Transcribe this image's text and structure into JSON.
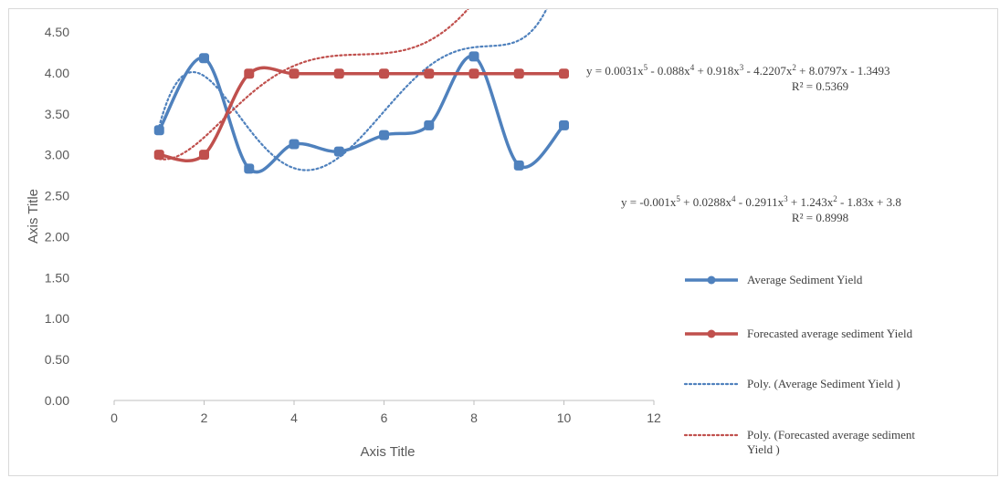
{
  "chart_data": {
    "type": "line",
    "title": "",
    "xlabel": "Axis Title",
    "ylabel": "Axis Title",
    "xlim": [
      0,
      12
    ],
    "ylim": [
      0,
      4.5
    ],
    "x_ticks": [
      "0",
      "2",
      "4",
      "6",
      "8",
      "10",
      "12"
    ],
    "y_ticks": [
      "0.00",
      "0.50",
      "1.00",
      "1.50",
      "2.00",
      "2.50",
      "3.00",
      "3.50",
      "4.00",
      "4.50"
    ],
    "x": [
      1,
      2,
      3,
      4,
      5,
      6,
      7,
      8,
      9,
      10
    ],
    "series": [
      {
        "name": "Average Sediment Yield",
        "values": [
          3.3,
          4.18,
          2.83,
          3.13,
          3.04,
          3.24,
          3.36,
          4.2,
          2.87,
          3.36
        ],
        "color": "#4f81bd",
        "style": "solid-smooth-markers"
      },
      {
        "name": "Forecasted average sediment Yield",
        "values": [
          3.0,
          3.0,
          3.99,
          3.99,
          3.99,
          3.99,
          3.99,
          3.99,
          3.99,
          3.99
        ],
        "color": "#c0504d",
        "style": "solid-smooth-markers"
      }
    ],
    "trendlines": [
      {
        "name": "Poly. (Average Sediment Yield )",
        "of_series": 0,
        "order": 5,
        "coefficients": [
          0.0031,
          -0.088,
          0.918,
          -4.2207,
          8.0797,
          -1.3493
        ],
        "equation_lines": [
          "y = 0.0031x",
          "5",
          " - 0.088x",
          "4",
          " + 0.918x",
          "3",
          " - 4.2207x",
          "2",
          " + 8.0797x - 1.3493"
        ],
        "r2": "R² = 0.5369",
        "color": "#4f81bd"
      },
      {
        "name": "Poly. (Forecasted average sediment Yield )",
        "of_series": 1,
        "order": 5,
        "coefficients": [
          -0.001,
          0.0288,
          -0.2911,
          1.243,
          -1.83,
          3.8
        ],
        "equation_lines": [
          "y = -0.001x",
          "5",
          " + 0.0288x",
          "4",
          " - 0.2911x",
          "3",
          " + 1.243x",
          "2",
          " - 1.83x + 3.8"
        ],
        "r2": "R² = 0.8998",
        "color": "#c0504d"
      }
    ],
    "legend": {
      "placement": "right",
      "entries": [
        "Average Sediment Yield",
        "Forecasted average sediment Yield",
        "Poly. (Average Sediment Yield )",
        "Poly. (Forecasted average sediment Yield )"
      ],
      "wrapped_last": [
        "Poly. (Forecasted average sediment",
        "Yield )"
      ]
    },
    "grid": false
  }
}
